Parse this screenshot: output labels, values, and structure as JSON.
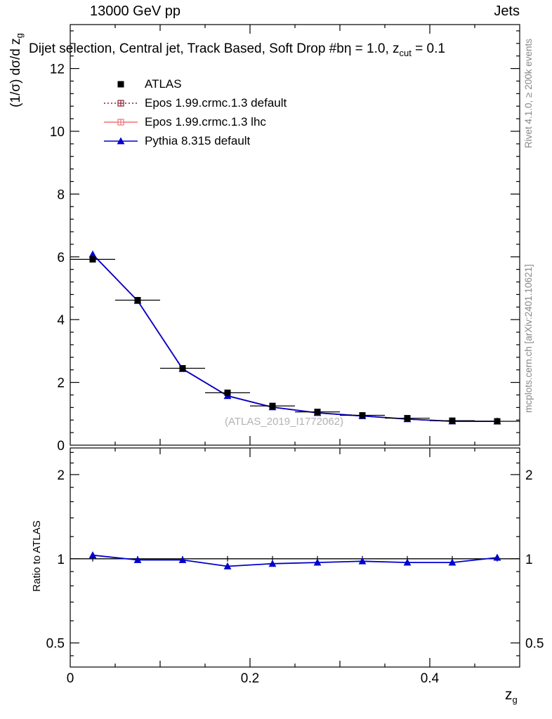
{
  "header": {
    "left": "13000 GeV pp",
    "right": "Jets"
  },
  "titles": {
    "plot_title": {
      "prefix": "Dijet selection, Central jet, Track Based, Soft Drop #bη = 1.0, z",
      "sub": "cut",
      "suffix": " = 0.1"
    },
    "y_label": {
      "main": "(1/σ) dσ/d z",
      "sub": "g"
    },
    "x_label": {
      "main": "z",
      "sub": "g"
    },
    "ratio_label": "Ratio to ATLAS"
  },
  "side_notes": {
    "top_right": "Rivet 4.1.0, ≥ 200k events",
    "bottom_right": "mcplots.cern.ch [arXiv:2401.10621]"
  },
  "watermark": "(ATLAS_2019_I1772062)",
  "legend": [
    {
      "label": "ATLAS",
      "marker": "filled-square",
      "color": "#000000",
      "line": "none"
    },
    {
      "label": "Epos 1.99.crmc.1.3 default",
      "marker": "open-cross",
      "color": "#8b1a2e",
      "line": "dotted"
    },
    {
      "label": "Epos 1.99.crmc.1.3 lhc",
      "marker": "open-cross",
      "color": "#ee7272",
      "line": "solid"
    },
    {
      "label": "Pythia 8.315 default",
      "marker": "filled-triangle",
      "color": "#0000cd",
      "line": "solid"
    }
  ],
  "chart_data": {
    "type": "line",
    "title": "Dijet selection, Central jet, Track Based, Soft Drop #bη = 1.0, z_cut = 0.1",
    "xlabel": "z_g",
    "xlim": [
      0,
      0.5
    ],
    "xticks": [
      0,
      0.2,
      0.4
    ],
    "xtick_labels": [
      "0",
      "0.2",
      "0.4"
    ],
    "x": [
      0.025,
      0.075,
      0.125,
      0.175,
      0.225,
      0.275,
      0.325,
      0.375,
      0.425,
      0.475
    ],
    "main_panel": {
      "ylabel": "(1/σ) dσ/d z_g",
      "ylim": [
        0,
        13.4
      ],
      "yticks": [
        0,
        2,
        4,
        6,
        8,
        10,
        12
      ],
      "ytick_labels": [
        "0",
        "2",
        "4",
        "6",
        "8",
        "10",
        "12"
      ],
      "series": [
        {
          "name": "ATLAS",
          "type": "scatter",
          "marker": "filled-square",
          "color": "#000000",
          "values": [
            5.92,
            4.62,
            2.45,
            1.67,
            1.25,
            1.06,
            0.95,
            0.86,
            0.78,
            0.76
          ]
        },
        {
          "name": "Epos 1.99.crmc.1.3 default",
          "type": "line",
          "style": "dotted",
          "color": "#8b1a2e",
          "values": [
            6.08,
            4.6,
            2.43,
            1.57,
            1.21,
            1.03,
            0.93,
            0.83,
            0.76,
            0.76
          ],
          "note": "curve visually coincident with Pythia 8.315 default"
        },
        {
          "name": "Epos 1.99.crmc.1.3 lhc",
          "type": "line",
          "style": "solid",
          "color": "#ee7272",
          "values": [
            6.08,
            4.6,
            2.43,
            1.57,
            1.21,
            1.03,
            0.93,
            0.83,
            0.76,
            0.76
          ],
          "note": "curve visually coincident with Pythia 8.315 default"
        },
        {
          "name": "Pythia 8.315 default",
          "type": "line",
          "style": "solid",
          "marker": "filled-triangle",
          "color": "#0000cd",
          "values": [
            6.08,
            4.6,
            2.43,
            1.57,
            1.21,
            1.03,
            0.93,
            0.83,
            0.76,
            0.76
          ]
        }
      ]
    },
    "ratio_panel": {
      "ylabel": "Ratio to ATLAS",
      "yscale": "log",
      "ylim": [
        0.41,
        2.49
      ],
      "yticks": [
        0.5,
        1,
        2
      ],
      "ytick_labels": [
        "0.5",
        "1",
        "2"
      ],
      "reference_line": 1,
      "series": [
        {
          "name": "Pythia 8.315 default",
          "marker": "filled-triangle",
          "color": "#0000cd",
          "values": [
            1.03,
            0.99,
            0.99,
            0.94,
            0.96,
            0.97,
            0.98,
            0.97,
            0.97,
            1.01
          ]
        }
      ]
    }
  }
}
